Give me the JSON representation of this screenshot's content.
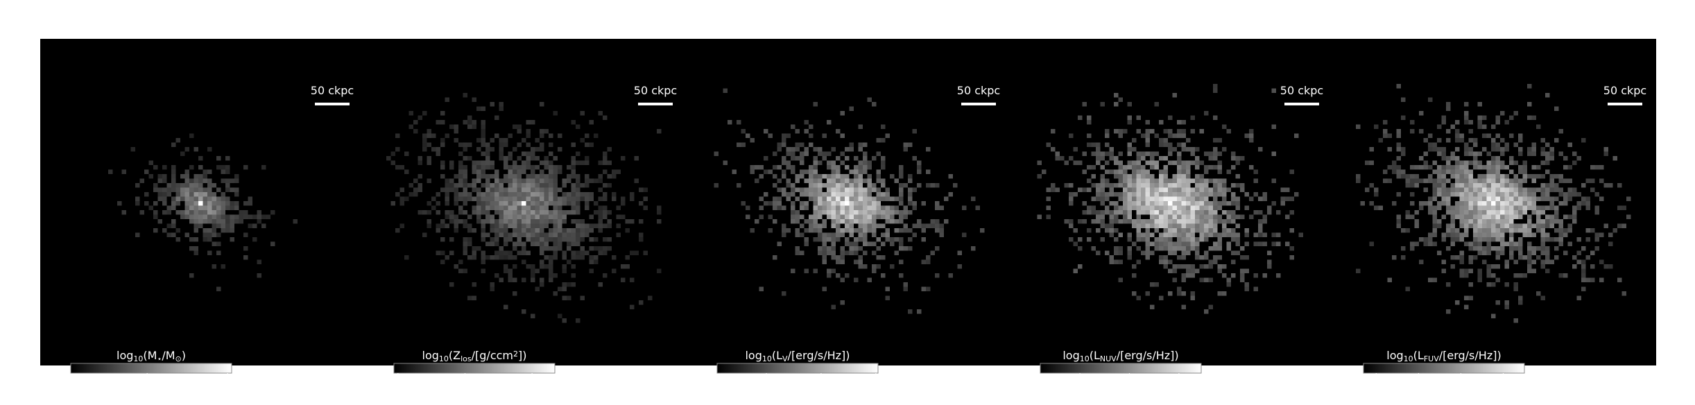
{
  "chart_data": [
    {
      "type": "image",
      "scale_bar_label": "50 ckpc",
      "colorbar_label": [
        {
          "text": "log"
        },
        {
          "text": "10",
          "sub": true
        },
        {
          "text": "(M"
        },
        {
          "text": "⋆",
          "sub": true
        },
        {
          "text": "/M"
        },
        {
          "text": "⊙",
          "sub": true
        },
        {
          "text": ")"
        }
      ],
      "clim": [
        6.1,
        10.1
      ],
      "cticks": [
        8,
        10
      ],
      "colormap": "gray"
    },
    {
      "type": "image",
      "scale_bar_label": "50 ckpc",
      "colorbar_label": [
        {
          "text": "log"
        },
        {
          "text": "10",
          "sub": true
        },
        {
          "text": "(Z"
        },
        {
          "text": "los",
          "sub": true
        },
        {
          "text": "/[g/ccm"
        },
        {
          "text": "2",
          "sup": true
        },
        {
          "text": "])"
        }
      ],
      "clim": [
        -10.3,
        1.7
      ],
      "cticks": [
        {
          "value": -10,
          "label": "−10"
        },
        {
          "value": -5,
          "label": "−5"
        },
        0
      ],
      "colormap": "gray"
    },
    {
      "type": "image",
      "scale_bar_label": "50 ckpc",
      "colorbar_label": [
        {
          "text": "log"
        },
        {
          "text": "10",
          "sub": true
        },
        {
          "text": "(L"
        },
        {
          "text": "V",
          "sub": true
        },
        {
          "text": "/[erg/s/Hz])"
        }
      ],
      "clim": [
        25.1,
        28.04
      ],
      "cticks": [
        26,
        27,
        28
      ],
      "colormap": "gray"
    },
    {
      "type": "image",
      "scale_bar_label": "50 ckpc",
      "colorbar_label": [
        {
          "text": "log"
        },
        {
          "text": "10",
          "sub": true
        },
        {
          "text": "(L"
        },
        {
          "text": "NUV",
          "sub": true
        },
        {
          "text": "/[erg/s/Hz])"
        }
      ],
      "clim": [
        24.2,
        27.45
      ],
      "cticks": [
        25,
        26,
        27
      ],
      "colormap": "gray"
    },
    {
      "type": "image",
      "scale_bar_label": "50 ckpc",
      "colorbar_label": [
        {
          "text": "log"
        },
        {
          "text": "10",
          "sub": true
        },
        {
          "text": "(L"
        },
        {
          "text": "FUV",
          "sub": true
        },
        {
          "text": "/[erg/s/Hz])"
        }
      ],
      "clim": [
        23.7,
        27.5
      ],
      "cticks": [
        24,
        25,
        26,
        27
      ],
      "colormap": "gray"
    }
  ]
}
